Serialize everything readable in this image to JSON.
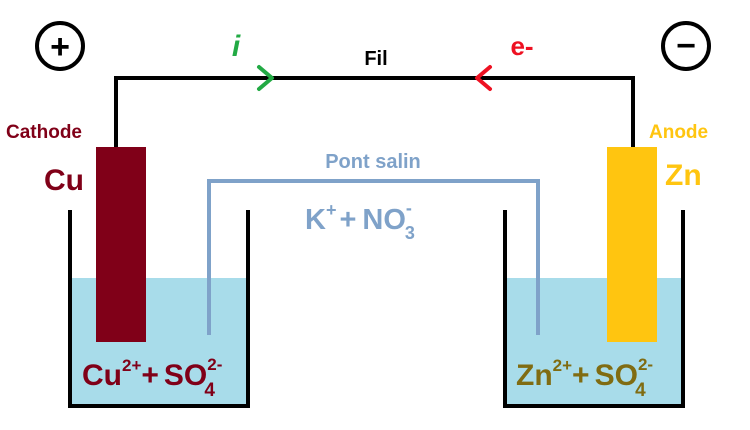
{
  "polarity": {
    "positive": "+",
    "negative": "−"
  },
  "wire": {
    "label": "Fil",
    "current_symbol": "i",
    "electron_symbol": "e-"
  },
  "left": {
    "role": "Cathode",
    "metal": "Cu",
    "solution": {
      "cation": "Cu",
      "cation_charge": "2+",
      "plus": "+",
      "anion": "SO",
      "anion_sub": "4",
      "anion_charge": "2-"
    }
  },
  "right": {
    "role": "Anode",
    "metal": "Zn",
    "solution": {
      "cation": "Zn",
      "cation_charge": "2+",
      "plus": "+",
      "anion": "SO",
      "anion_sub": "4",
      "anion_charge": "2-"
    }
  },
  "bridge": {
    "label": "Pont salin",
    "cation": "K",
    "cation_charge": "+",
    "plus": "+",
    "anion": "NO",
    "anion_sub": "3",
    "anion_charge": "-"
  },
  "colors": {
    "cathode": "#800018",
    "anode": "#ffc510",
    "zinc_text": "#806c12",
    "solution": "#a8dcea",
    "bridge": "#7fa2c9",
    "current_arrow": "#22aa44",
    "electron_arrow": "#ee1122",
    "wire": "#000000"
  }
}
